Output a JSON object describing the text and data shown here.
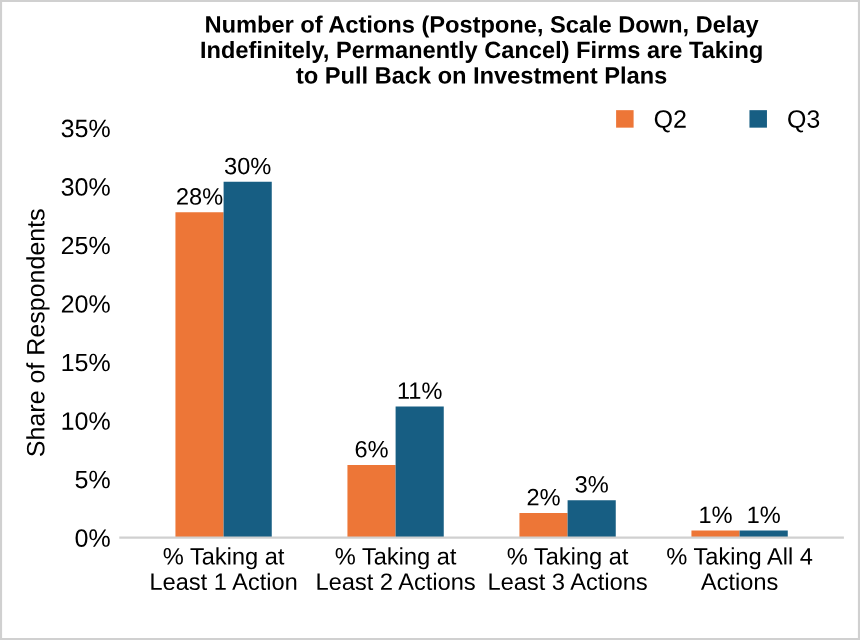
{
  "chart_data": {
    "type": "bar",
    "title": "Number of Actions (Postpone, Scale Down, Delay\nIndefinitely, Permanently Cancel) Firms are Taking\nto Pull Back on Investment Plans",
    "ylabel": "Share of Respondents",
    "categories": [
      "% Taking at\nLeast 1 Action",
      "% Taking at\nLeast 2 Actions",
      "% Taking at\nLeast 3 Actions",
      "% Taking All 4\nActions"
    ],
    "series": [
      {
        "name": "Q2",
        "color": "#ed7637",
        "values": [
          27.8,
          6.2,
          2.1,
          0.6
        ],
        "value_labels": [
          "28%",
          "6%",
          "2%",
          "1%"
        ]
      },
      {
        "name": "Q3",
        "color": "#175e83",
        "values": [
          30.4,
          11.2,
          3.2,
          0.6
        ],
        "value_labels": [
          "30%",
          "11%",
          "3%",
          "1%"
        ]
      }
    ],
    "ylim": [
      0,
      35
    ],
    "yticks": [
      {
        "value": 0,
        "label": "0%"
      },
      {
        "value": 5,
        "label": "5%"
      },
      {
        "value": 10,
        "label": "10%"
      },
      {
        "value": 15,
        "label": "15%"
      },
      {
        "value": 20,
        "label": "20%"
      },
      {
        "value": 25,
        "label": "25%"
      },
      {
        "value": 30,
        "label": "30%"
      },
      {
        "value": 35,
        "label": "35%"
      }
    ],
    "grid": false,
    "legend": "top right"
  }
}
